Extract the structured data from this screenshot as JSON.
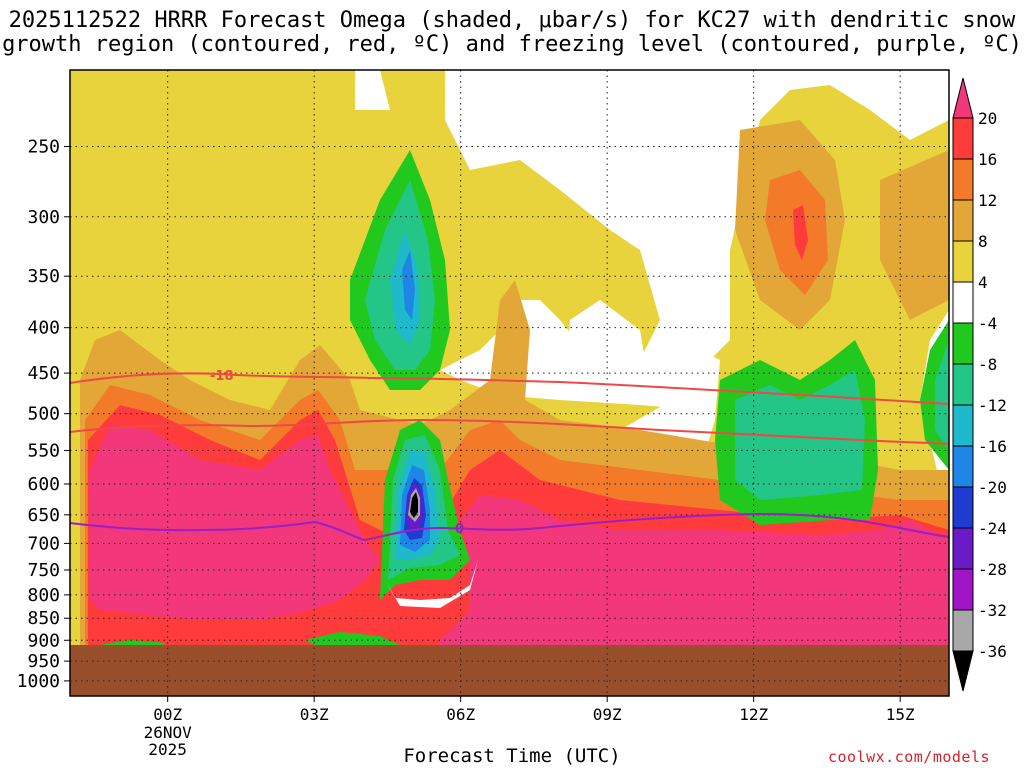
{
  "header": {
    "title_line1": "2025112522 HRRR Forecast Omega (shaded, μbar/s) for KC27 with dendritic snow",
    "title_line2": "growth region (contoured, red, ºC) and freezing level (contoured, purple, ºC)"
  },
  "credit": "coolwx.com/models",
  "chart_data": {
    "type": "heatmap",
    "xlabel": "Forecast Time (UTC)",
    "ylabel": "",
    "y_scale": "log-pressure (inverted)",
    "y_ticks": [
      "250",
      "300",
      "350",
      "400",
      "450",
      "500",
      "550",
      "600",
      "650",
      "700",
      "750",
      "800",
      "850",
      "900",
      "950",
      "1000"
    ],
    "ylim": [
      1000,
      200
    ],
    "x_ticks": [
      "00Z",
      "03Z",
      "06Z",
      "09Z",
      "12Z",
      "15Z"
    ],
    "x_date_label": [
      "26NOV",
      "2025"
    ],
    "xlim": [
      "2025-11-25T22Z",
      "2025-11-26T16Z"
    ],
    "grid": "dotted",
    "colorbar": {
      "levels": [
        20,
        16,
        12,
        8,
        4,
        -4,
        -8,
        -12,
        -16,
        -20,
        -24,
        -28,
        -32,
        -36
      ],
      "colors": [
        "#f2377a",
        "#ff3b3b",
        "#f27a29",
        "#e3a738",
        "#e8d33c",
        "#ffffff",
        "#21c91e",
        "#24c688",
        "#1fb9cc",
        "#1f85e6",
        "#1f3bd0",
        "#6b1ac8",
        "#a214c7",
        "#a8a8a8",
        "#000000"
      ]
    },
    "contours": {
      "dendritic_snow_growth_region": {
        "color": "#f04848",
        "labels": [
          "-18"
        ]
      },
      "freezing_level": {
        "color": "#9b1fc9",
        "labels": [
          "0"
        ]
      }
    },
    "terrain": {
      "color": "#9a4f2c",
      "top_hPa": 920
    }
  }
}
